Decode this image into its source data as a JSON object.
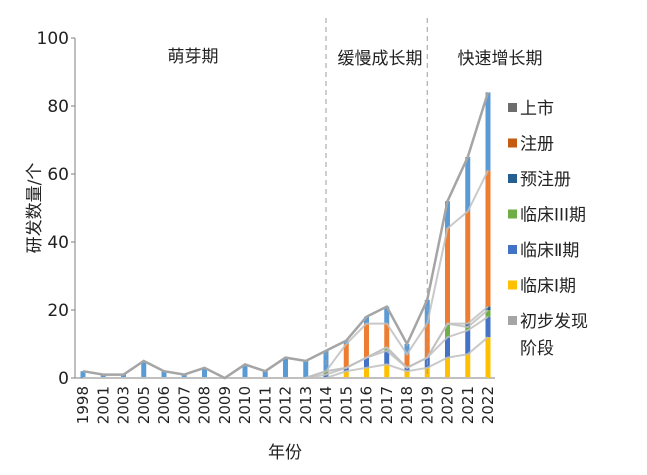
{
  "chart_data": {
    "type": "bar",
    "stacked": true,
    "categories": [
      "1998",
      "2001",
      "2003",
      "2005",
      "2006",
      "2007",
      "2008",
      "2009",
      "2010",
      "2011",
      "2012",
      "2013",
      "2014",
      "2015",
      "2016",
      "2017",
      "2018",
      "2019",
      "2020",
      "2021",
      "2022"
    ],
    "series": [
      {
        "name": "初步发现阶段",
        "color": "#a5a5a5",
        "values": [
          0,
          0,
          0,
          0,
          0,
          0,
          0,
          0,
          0,
          0,
          0,
          0,
          0,
          0,
          0,
          0,
          0,
          0,
          0,
          0,
          0
        ]
      },
      {
        "name": "临床Ⅰ期",
        "color": "#ffc000",
        "values": [
          0,
          0,
          0,
          0,
          0,
          0,
          0,
          0,
          0,
          0,
          0,
          0,
          0,
          2,
          3,
          4,
          2,
          3,
          6,
          7,
          12
        ]
      },
      {
        "name": "临床Ⅱ期",
        "color": "#4472c4",
        "values": [
          0,
          0,
          0,
          0,
          0,
          0,
          0,
          0,
          0,
          0,
          0,
          0,
          1,
          1,
          3,
          4,
          1,
          3,
          6,
          7,
          6
        ]
      },
      {
        "name": "临床Ⅲ期",
        "color": "#70ad47",
        "values": [
          0,
          0,
          0,
          0,
          0,
          0,
          0,
          0,
          0,
          0,
          0,
          0,
          1,
          0,
          0,
          1,
          0,
          0,
          4,
          1,
          2
        ]
      },
      {
        "name": "预注册",
        "color": "#255e91",
        "values": [
          0,
          0,
          0,
          0,
          0,
          0,
          0,
          0,
          0,
          0,
          0,
          0,
          0,
          0,
          0,
          0,
          0,
          0,
          0,
          1,
          1
        ]
      },
      {
        "name": "注册",
        "color": "#ed7d31",
        "values": [
          0,
          0,
          0,
          0,
          0,
          0,
          0,
          0,
          0,
          0,
          0,
          0,
          0,
          7,
          10,
          7,
          4,
          10,
          28,
          33,
          40
        ]
      },
      {
        "name": "上市",
        "color": "#5b9bd5",
        "values": [
          2,
          1,
          1,
          5,
          2,
          1,
          3,
          0,
          4,
          2,
          6,
          5,
          6,
          1,
          2,
          5,
          3,
          7,
          8,
          16,
          23
        ]
      }
    ],
    "legend_series": [
      {
        "name": "上市",
        "color": "#6d6d6d"
      },
      {
        "name": "注册",
        "color": "#c55a11"
      },
      {
        "name": "预注册",
        "color": "#255e91"
      },
      {
        "name": "临床Ⅲ期",
        "color": "#70ad47"
      },
      {
        "name": "临床Ⅱ期",
        "color": "#4472c4"
      },
      {
        "name": "临床Ⅰ期",
        "color": "#ffc000"
      },
      {
        "name": "初步发现阶段",
        "color": "#a5a5a5"
      }
    ],
    "phases": [
      {
        "name": "萌芽期",
        "start": "1998",
        "end": "2014"
      },
      {
        "name": "缓慢成长期",
        "start": "2014",
        "end": "2019"
      },
      {
        "name": "快速增长期",
        "start": "2019",
        "end": "2022"
      }
    ],
    "xlabel": "年份",
    "ylabel": "研发数量/个",
    "ylim": [
      0,
      100
    ],
    "yticks": [
      0,
      20,
      40,
      60,
      80,
      100
    ],
    "grid": false,
    "legend_position": "right"
  },
  "text": {
    "legend_labels": [
      "上市",
      "注册",
      "预注册",
      "临床III期",
      "临床Ⅱ期",
      "临床Ⅰ期",
      "初步发现",
      "阶段"
    ],
    "phase_labels": [
      "萌芽期",
      "缓慢成长期",
      "快速增长期"
    ]
  }
}
